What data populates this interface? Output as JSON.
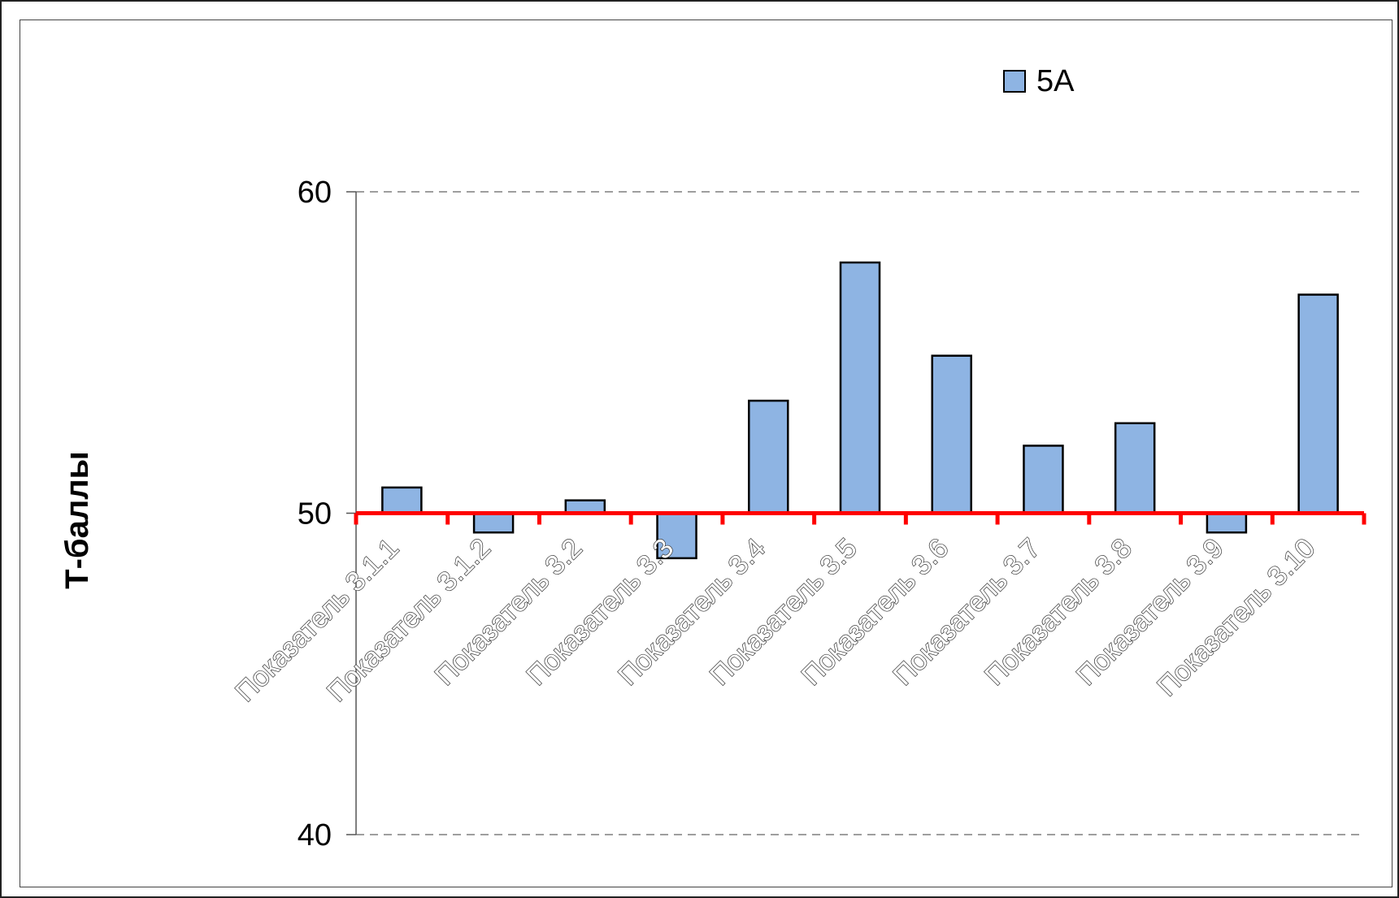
{
  "chart_data": {
    "type": "bar",
    "categories": [
      "Показатель 3.1.1",
      "Показатель 3.1.2",
      "Показатель 3.2",
      "Показатель 3.3",
      "Показатель 3.4",
      "Показатель 3.5",
      "Показатель 3.6",
      "Показатель 3.7",
      "Показатель 3.8",
      "Показатель 3.9",
      "Показатель 3.10"
    ],
    "series": [
      {
        "name": "5А",
        "values": [
          50.8,
          49.4,
          50.4,
          48.6,
          53.5,
          57.8,
          54.9,
          52.1,
          52.8,
          49.4,
          56.8
        ]
      }
    ],
    "ylabel": "Т-баллы",
    "ylim": [
      40,
      60
    ],
    "yticks": [
      40,
      50,
      60
    ],
    "reference_line": 50,
    "grid": "dashed",
    "legend": "top-right",
    "colors": {
      "bar": "#8eb4e3",
      "bar_stroke": "#000000",
      "reference": "#ff0000",
      "grid": "#7f7f7f"
    }
  }
}
